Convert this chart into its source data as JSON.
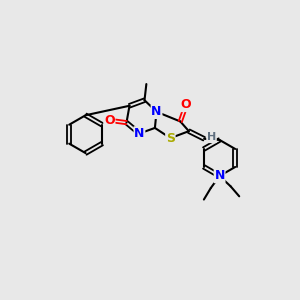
{
  "background_color": "#e8e8e8",
  "atom_colors": {
    "N": "#0000ff",
    "O": "#ff0000",
    "S": "#aaaa00",
    "H": "#607080",
    "C": "#000000"
  },
  "lw": 1.5,
  "lw_double": 1.3
}
